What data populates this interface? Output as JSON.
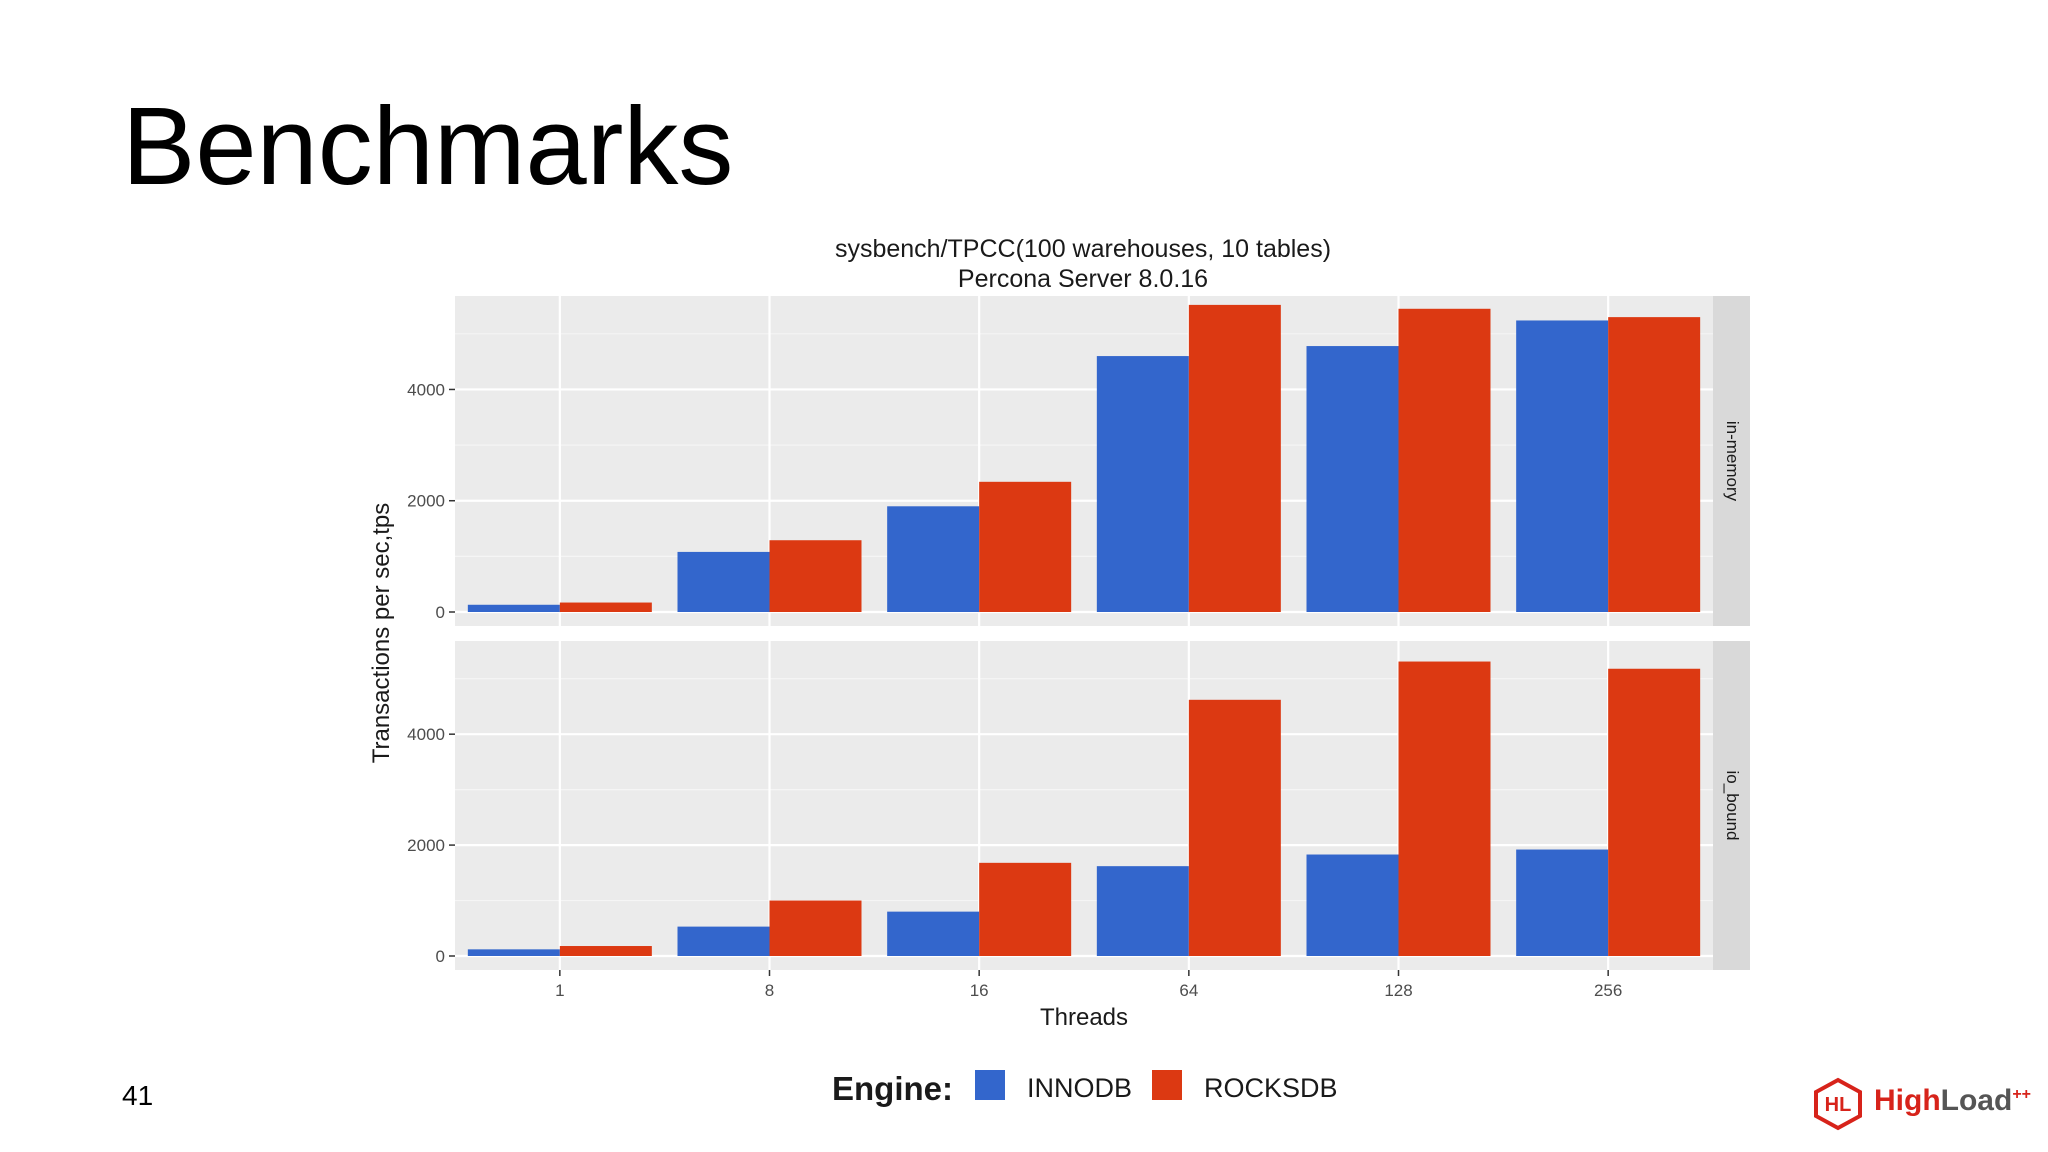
{
  "slide": {
    "title": "Benchmarks",
    "page_number": "41"
  },
  "logo": {
    "mark": "HL",
    "text_high": "High",
    "text_load": "Load",
    "superscript": "++",
    "red": "#d7231a",
    "gray": "#555555"
  },
  "colors": {
    "innodb": "#3366cc",
    "rocksdb": "#dc3912",
    "panel_bg": "#ebebeb",
    "grid_major": "#ffffff",
    "strip_bg": "#d9d9d9"
  },
  "chart_data": {
    "type": "bar",
    "title": "sysbench/TPCC(100 warehouses, 10 tables)",
    "subtitle": "Percona Server 8.0.16",
    "xlabel": "Threads",
    "ylabel": "Transactions per sec,tps",
    "categories": [
      "1",
      "8",
      "16",
      "64",
      "128",
      "256"
    ],
    "ylim": [
      0,
      5500
    ],
    "yticks": [
      0,
      2000,
      4000
    ],
    "yticklabels": [
      "0",
      "2000",
      "4000"
    ],
    "legend": {
      "title": "Engine:",
      "position": "bottom",
      "entries": [
        "INNODB",
        "ROCKSDB"
      ]
    },
    "panels": [
      {
        "strip_label": "in-memory",
        "series": [
          {
            "name": "INNODB",
            "values": [
              130,
              1080,
              1900,
              4600,
              4780,
              5240
            ]
          },
          {
            "name": "ROCKSDB",
            "values": [
              170,
              1290,
              2340,
              5520,
              5450,
              5300
            ]
          }
        ]
      },
      {
        "strip_label": "io_bound",
        "series": [
          {
            "name": "INNODB",
            "values": [
              120,
              530,
              800,
              1620,
              1830,
              1920
            ]
          },
          {
            "name": "ROCKSDB",
            "values": [
              180,
              1000,
              1680,
              4620,
              5310,
              5180
            ]
          }
        ]
      }
    ]
  }
}
